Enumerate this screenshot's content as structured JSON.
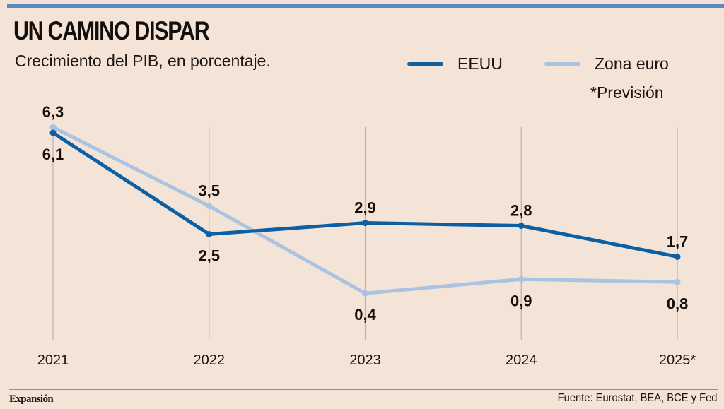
{
  "header": {
    "title": "UN CAMINO DISPAR",
    "subtitle": "Crecimiento del PIB, en porcentaje."
  },
  "legend": {
    "items": [
      {
        "label": "EEUU",
        "color": "#0b5fa5"
      },
      {
        "label": "Zona euro",
        "color": "#a9c3e0"
      }
    ],
    "note": "*Previsión"
  },
  "footer": {
    "brand": "Expansión",
    "source": "Fuente: Eurostat, BEA, BCE y Fed"
  },
  "colors": {
    "background": "#f4e4d8",
    "top_bar": "#5a8ac2",
    "gridline": "#bdb1a8"
  },
  "chart_data": {
    "type": "line",
    "title": "UN CAMINO DISPAR",
    "subtitle": "Crecimiento del PIB, en porcentaje.",
    "xlabel": "",
    "ylabel": "",
    "categories": [
      "2021",
      "2022",
      "2023",
      "2024",
      "2025*"
    ],
    "ylim": [
      -1.25,
      6.3
    ],
    "grid": "vertical",
    "legend_position": "top-right",
    "series": [
      {
        "name": "EEUU",
        "color": "#0b5fa5",
        "values": [
          6.1,
          2.5,
          2.9,
          2.8,
          1.7
        ],
        "labels": [
          "6,1",
          "2,5",
          "2,9",
          "2,8",
          "1,7"
        ],
        "label_side": [
          "below",
          "below",
          "above",
          "above",
          "above"
        ]
      },
      {
        "name": "Zona euro",
        "color": "#a9c3e0",
        "values": [
          6.3,
          3.5,
          0.4,
          0.9,
          0.8
        ],
        "labels": [
          "6,3",
          "3,5",
          "0,4",
          "0,9",
          "0,8"
        ],
        "label_side": [
          "above",
          "above",
          "below",
          "below",
          "below"
        ]
      }
    ],
    "annotations": [
      "*Previsión"
    ]
  }
}
